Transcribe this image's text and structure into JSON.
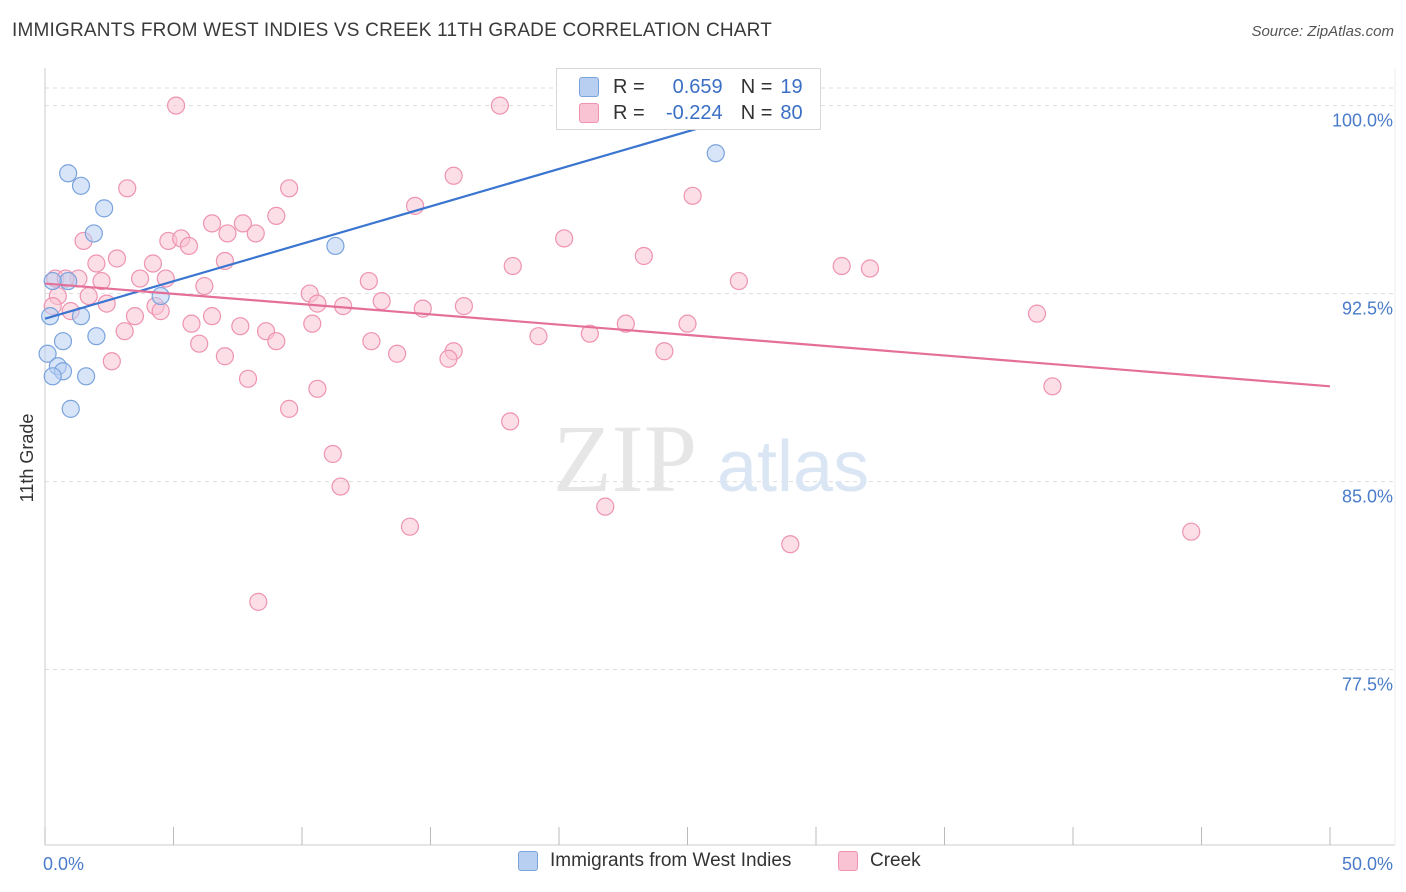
{
  "title": "IMMIGRANTS FROM WEST INDIES VS CREEK 11TH GRADE CORRELATION CHART",
  "source": "Source: ZipAtlas.com",
  "watermark": {
    "zip": "ZIP",
    "atlas": "atlas"
  },
  "colors": {
    "blue_fill": "#b8cff2",
    "blue_stroke": "#7aa3dd",
    "blue_line": "#3a75d0",
    "pink_fill": "#f9c3d3",
    "pink_stroke": "#ee93b0",
    "pink_line": "#e46f99",
    "axis_text": "#4a7cc9",
    "grid": "#dddddd"
  },
  "stats": [
    {
      "r_label": "R =",
      "r_value": "0.659",
      "n_label": "N =",
      "n_value": "19",
      "series": "blue"
    },
    {
      "r_label": "R =",
      "r_value": "-0.224",
      "n_label": "N =",
      "n_value": "80",
      "series": "pink"
    }
  ],
  "legend": [
    {
      "label": "Immigrants from West Indies",
      "series": "blue"
    },
    {
      "label": "Creek",
      "series": "pink"
    }
  ],
  "chart_data": {
    "type": "scatter",
    "ylabel": "11th Grade",
    "xlim": [
      0,
      50
    ],
    "ylim": [
      70.5,
      101.5
    ],
    "x_ticks": [
      0,
      5,
      10,
      15,
      20,
      25,
      30,
      35,
      40,
      45,
      50
    ],
    "x_tick_labels": {
      "0": "0.0%",
      "50": "50.0%"
    },
    "y_ticks": [
      77.5,
      85.0,
      92.5,
      100.0
    ],
    "y_tick_labels": [
      "77.5%",
      "85.0%",
      "92.5%",
      "100.0%"
    ],
    "grid": true,
    "series": [
      {
        "name": "Immigrants from West Indies",
        "color": "blue",
        "trend": {
          "x": [
            0.0,
            28.8
          ],
          "y": [
            91.5,
            100.1
          ]
        },
        "points": [
          [
            0.9,
            97.3
          ],
          [
            1.4,
            96.8
          ],
          [
            2.3,
            95.9
          ],
          [
            1.9,
            94.9
          ],
          [
            11.3,
            94.4
          ],
          [
            26.1,
            98.1
          ],
          [
            0.9,
            93.0
          ],
          [
            4.5,
            92.4
          ],
          [
            0.2,
            91.6
          ],
          [
            1.4,
            91.6
          ],
          [
            2.0,
            90.8
          ],
          [
            0.7,
            90.6
          ],
          [
            0.1,
            90.1
          ],
          [
            0.5,
            89.6
          ],
          [
            0.7,
            89.4
          ],
          [
            0.3,
            89.2
          ],
          [
            1.6,
            89.2
          ],
          [
            1.0,
            87.9
          ],
          [
            0.3,
            93.0
          ]
        ]
      },
      {
        "name": "Creek",
        "color": "pink",
        "trend": {
          "x": [
            0.0,
            50.0
          ],
          "y": [
            92.9,
            88.8
          ]
        },
        "points": [
          [
            5.1,
            100.0
          ],
          [
            17.7,
            100.0
          ],
          [
            3.2,
            96.7
          ],
          [
            9.5,
            96.7
          ],
          [
            15.9,
            97.2
          ],
          [
            25.2,
            96.4
          ],
          [
            14.4,
            96.0
          ],
          [
            9.0,
            95.6
          ],
          [
            6.5,
            95.3
          ],
          [
            7.7,
            95.3
          ],
          [
            7.1,
            94.9
          ],
          [
            8.2,
            94.9
          ],
          [
            20.2,
            94.7
          ],
          [
            1.5,
            94.6
          ],
          [
            4.8,
            94.6
          ],
          [
            5.3,
            94.7
          ],
          [
            5.6,
            94.4
          ],
          [
            23.3,
            94.0
          ],
          [
            2.8,
            93.9
          ],
          [
            7.0,
            93.8
          ],
          [
            2.0,
            93.7
          ],
          [
            4.2,
            93.7
          ],
          [
            18.2,
            93.6
          ],
          [
            31.0,
            93.6
          ],
          [
            32.1,
            93.5
          ],
          [
            0.4,
            93.1
          ],
          [
            1.3,
            93.1
          ],
          [
            0.8,
            93.1
          ],
          [
            3.7,
            93.1
          ],
          [
            4.7,
            93.1
          ],
          [
            12.6,
            93.0
          ],
          [
            27.0,
            93.0
          ],
          [
            2.2,
            93.0
          ],
          [
            0.5,
            92.4
          ],
          [
            6.2,
            92.8
          ],
          [
            10.3,
            92.5
          ],
          [
            1.7,
            92.4
          ],
          [
            13.1,
            92.2
          ],
          [
            2.4,
            92.1
          ],
          [
            0.3,
            92.0
          ],
          [
            4.3,
            92.0
          ],
          [
            10.6,
            92.1
          ],
          [
            14.7,
            91.9
          ],
          [
            16.3,
            92.0
          ],
          [
            38.6,
            91.7
          ],
          [
            1.0,
            91.8
          ],
          [
            3.5,
            91.6
          ],
          [
            4.5,
            91.8
          ],
          [
            6.5,
            91.6
          ],
          [
            5.7,
            91.3
          ],
          [
            7.6,
            91.2
          ],
          [
            10.4,
            91.3
          ],
          [
            22.6,
            91.3
          ],
          [
            25.0,
            91.3
          ],
          [
            3.1,
            91.0
          ],
          [
            8.6,
            91.0
          ],
          [
            19.2,
            90.8
          ],
          [
            21.2,
            90.9
          ],
          [
            12.7,
            90.6
          ],
          [
            9.0,
            90.6
          ],
          [
            6.0,
            90.5
          ],
          [
            15.9,
            90.2
          ],
          [
            13.7,
            90.1
          ],
          [
            24.1,
            90.2
          ],
          [
            7.0,
            90.0
          ],
          [
            15.7,
            89.9
          ],
          [
            2.6,
            89.8
          ],
          [
            7.9,
            89.1
          ],
          [
            39.2,
            88.8
          ],
          [
            10.6,
            88.7
          ],
          [
            9.5,
            87.9
          ],
          [
            18.1,
            87.4
          ],
          [
            11.2,
            86.1
          ],
          [
            11.5,
            84.8
          ],
          [
            21.8,
            84.0
          ],
          [
            14.2,
            83.2
          ],
          [
            44.6,
            83.0
          ],
          [
            29.0,
            82.5
          ],
          [
            8.3,
            80.2
          ],
          [
            11.6,
            92.0
          ]
        ]
      }
    ]
  }
}
